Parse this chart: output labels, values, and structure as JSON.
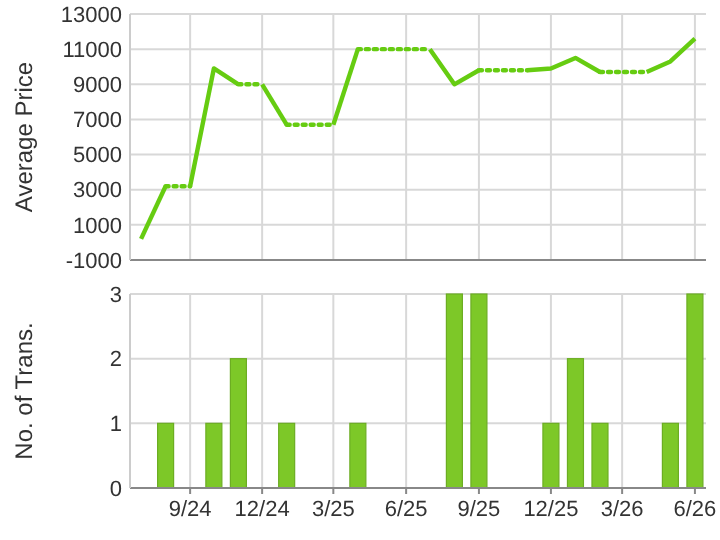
{
  "chart_data": [
    {
      "type": "line",
      "ylabel": "Average Price",
      "xlim": [
        "2024-06-17",
        "2026-06-15"
      ],
      "ylim": [
        -1000,
        13000
      ],
      "yticks": [
        -1000,
        1000,
        3000,
        5000,
        7000,
        9000,
        11000,
        13000
      ],
      "xticks": [
        {
          "value": "2024-09",
          "label": null
        },
        {
          "value": "2024-12",
          "label": null
        },
        {
          "value": "2025-03",
          "label": null
        },
        {
          "value": "2025-06",
          "label": null
        },
        {
          "value": "2025-09",
          "label": null
        },
        {
          "value": "2025-12",
          "label": null
        },
        {
          "value": "2026-03",
          "label": null
        },
        {
          "value": "2026-06",
          "label": null
        }
      ],
      "tick_labels": "y",
      "grid": true,
      "marker": "none",
      "series": [
        {
          "color": "#66cc11",
          "line_style": "solid",
          "x": [
            "2024-07",
            "2024-08"
          ],
          "values": [
            200,
            3200
          ]
        },
        {
          "color": "#66cc11",
          "line_style": "dotted",
          "x": [
            "2024-08",
            "2024-09"
          ],
          "values": [
            3200,
            3200
          ]
        },
        {
          "color": "#66cc11",
          "line_style": "solid",
          "x": [
            "2024-09",
            "2024-10",
            "2024-11"
          ],
          "values": [
            3200,
            9900,
            9000
          ]
        },
        {
          "color": "#66cc11",
          "line_style": "dotted",
          "x": [
            "2024-11",
            "2024-12"
          ],
          "values": [
            9000,
            9000
          ]
        },
        {
          "color": "#66cc11",
          "line_style": "solid",
          "x": [
            "2024-12",
            "2025-01"
          ],
          "values": [
            9000,
            6700
          ]
        },
        {
          "color": "#66cc11",
          "line_style": "dotted",
          "x": [
            "2025-01",
            "2025-02",
            "2025-03"
          ],
          "values": [
            6700,
            6700,
            6700
          ]
        },
        {
          "color": "#66cc11",
          "line_style": "solid",
          "x": [
            "2025-03",
            "2025-04"
          ],
          "values": [
            6700,
            11000
          ]
        },
        {
          "color": "#66cc11",
          "line_style": "dotted",
          "x": [
            "2025-04",
            "2025-05",
            "2025-06",
            "2025-07"
          ],
          "values": [
            11000,
            11000,
            11000,
            11000
          ]
        },
        {
          "color": "#66cc11",
          "line_style": "solid",
          "x": [
            "2025-07",
            "2025-08",
            "2025-09"
          ],
          "values": [
            11000,
            9000,
            9800
          ]
        },
        {
          "color": "#66cc11",
          "line_style": "dotted",
          "x": [
            "2025-09",
            "2025-10",
            "2025-11"
          ],
          "values": [
            9800,
            9800,
            9800
          ]
        },
        {
          "color": "#66cc11",
          "line_style": "solid",
          "x": [
            "2025-11",
            "2025-12",
            "2026-01",
            "2026-02"
          ],
          "values": [
            9800,
            9900,
            10500,
            9700
          ]
        },
        {
          "color": "#66cc11",
          "line_style": "dotted",
          "x": [
            "2026-02",
            "2026-03",
            "2026-04"
          ],
          "values": [
            9700,
            9700,
            9700
          ]
        },
        {
          "color": "#66cc11",
          "line_style": "solid",
          "x": [
            "2026-04",
            "2026-05",
            "2026-06"
          ],
          "values": [
            9700,
            10300,
            11600
          ]
        }
      ]
    },
    {
      "type": "bar",
      "ylabel": "No. of Trans.",
      "xlim": [
        "2024-06-17",
        "2026-06-15"
      ],
      "ylim": [
        0,
        3
      ],
      "yticks": [
        0,
        1,
        2,
        3
      ],
      "xticks": [
        {
          "value": "2024-09",
          "label": "9/24"
        },
        {
          "value": "2024-12",
          "label": "12/24"
        },
        {
          "value": "2025-03",
          "label": "3/25"
        },
        {
          "value": "2025-06",
          "label": "6/25"
        },
        {
          "value": "2025-09",
          "label": "9/25"
        },
        {
          "value": "2025-12",
          "label": "12/25"
        },
        {
          "value": "2026-03",
          "label": "3/26"
        },
        {
          "value": "2026-06",
          "label": "6/26"
        }
      ],
      "grid": true,
      "x": [
        "2024-07",
        "2024-08",
        "2024-09",
        "2024-10",
        "2024-11",
        "2024-12",
        "2025-01",
        "2025-02",
        "2025-03",
        "2025-04",
        "2025-05",
        "2025-06",
        "2025-07",
        "2025-08",
        "2025-09",
        "2025-10",
        "2025-11",
        "2025-12",
        "2026-01",
        "2026-02",
        "2026-03",
        "2026-04",
        "2026-05",
        "2026-06"
      ],
      "values": [
        0,
        1,
        0,
        1,
        2,
        0,
        1,
        0,
        0,
        1,
        0,
        0,
        0,
        3,
        3,
        0,
        0,
        1,
        2,
        1,
        0,
        0,
        1,
        3
      ],
      "color": "#7dc828"
    }
  ]
}
